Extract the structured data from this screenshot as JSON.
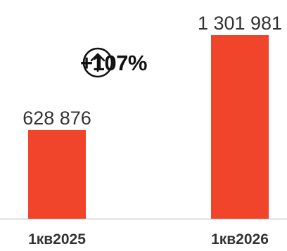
{
  "chart_data": {
    "type": "bar",
    "categories": [
      "1кв2025",
      "1кв2026"
    ],
    "values": [
      628876,
      1301981
    ],
    "value_labels": [
      "628 876",
      "1 301 981"
    ],
    "title": "",
    "xlabel": "",
    "ylabel": "",
    "ylim": [
      0,
      1301981
    ],
    "grid": false,
    "legend": "none",
    "annotation": "+107%",
    "bar_color": "#f0452a",
    "axis_color": "#b0b0b0",
    "label_color": "#333333"
  },
  "icons": {
    "change": "arrow-up-circle-icon"
  }
}
